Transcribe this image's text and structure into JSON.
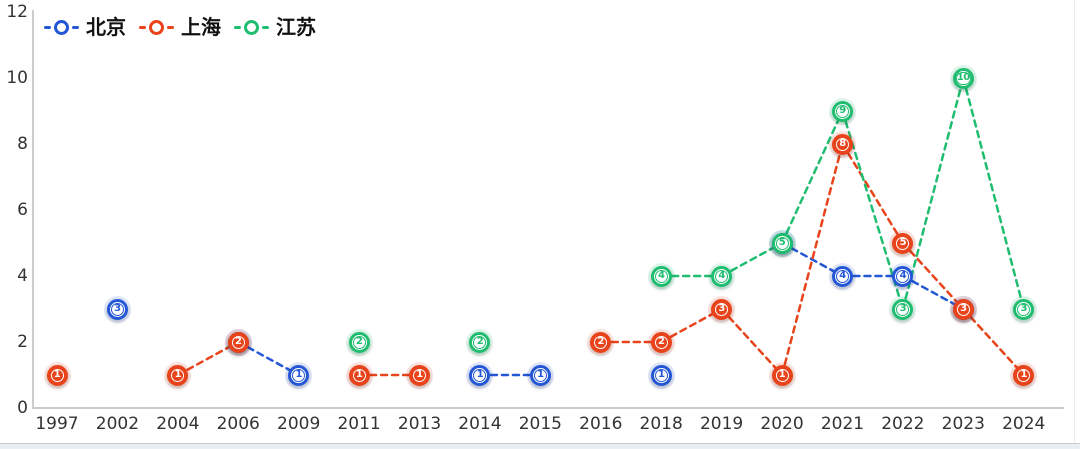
{
  "chart_data": {
    "type": "line",
    "title": "",
    "line_style": "dashed",
    "grid": false,
    "connect_nulls": false,
    "legend_position": "top-left",
    "categories": [
      "1997",
      "2002",
      "2004",
      "2006",
      "2009",
      "2011",
      "2013",
      "2014",
      "2015",
      "2016",
      "2018",
      "2019",
      "2020",
      "2021",
      "2022",
      "2023",
      "2024"
    ],
    "series": [
      {
        "name": "北京",
        "color": "#2457d6",
        "marker_style": "hollow",
        "values": [
          null,
          3,
          null,
          2,
          1,
          null,
          null,
          1,
          1,
          null,
          1,
          null,
          5,
          4,
          4,
          3,
          null
        ]
      },
      {
        "name": "上海",
        "color": "#e8431a",
        "marker_style": "filled",
        "values": [
          1,
          null,
          1,
          2,
          null,
          1,
          1,
          null,
          null,
          2,
          2,
          3,
          1,
          8,
          5,
          3,
          1
        ]
      },
      {
        "name": "江苏",
        "color": "#1fbd70",
        "marker_style": "hollow",
        "values": [
          null,
          null,
          null,
          null,
          null,
          2,
          null,
          2,
          null,
          null,
          4,
          4,
          5,
          9,
          3,
          10,
          3
        ]
      }
    ],
    "y_ticks": [
      0,
      2,
      4,
      6,
      8,
      10,
      12
    ],
    "ylim": [
      0,
      12
    ],
    "xlabel": "",
    "ylabel": ""
  }
}
